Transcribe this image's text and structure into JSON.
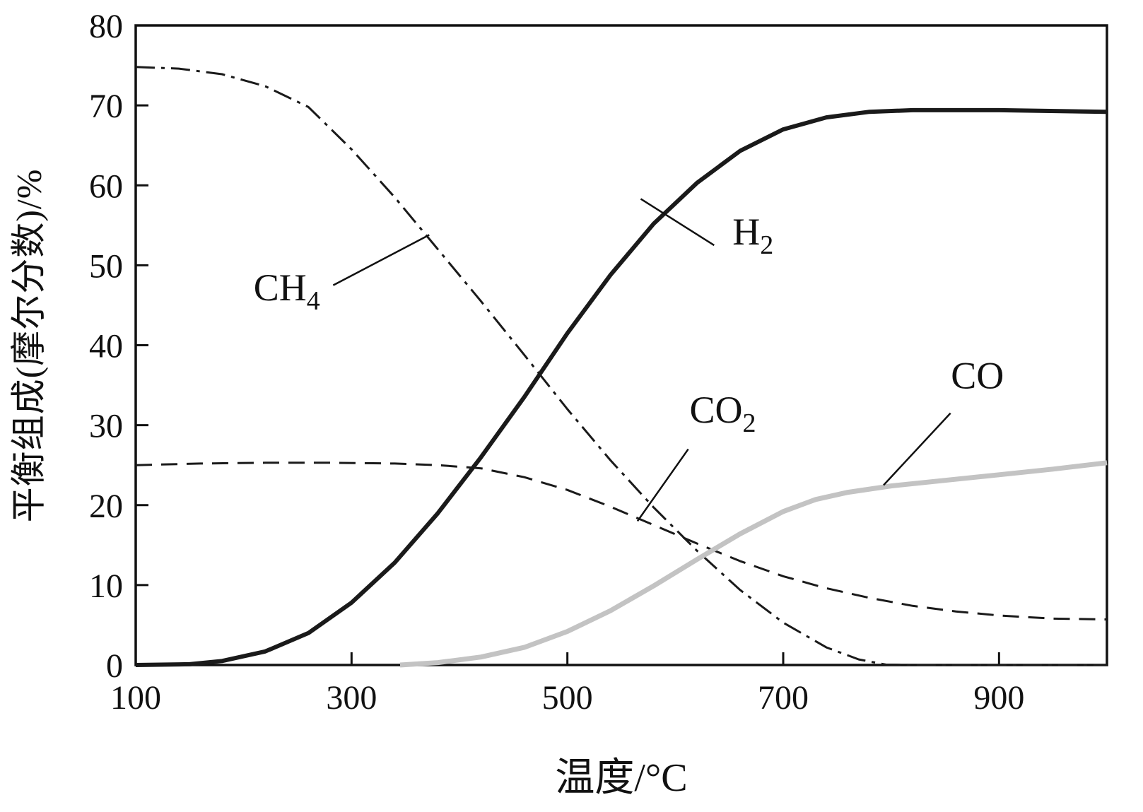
{
  "chart_data": {
    "type": "line",
    "title": "",
    "xlabel": "温度/°C",
    "ylabel": "平衡组成(摩尔分数)/%",
    "xlim": [
      100,
      1000
    ],
    "ylim": [
      0,
      80
    ],
    "x_ticks": [
      100,
      300,
      500,
      700,
      900
    ],
    "y_ticks": [
      0,
      10,
      20,
      30,
      40,
      50,
      60,
      70,
      80
    ],
    "grid": false,
    "legend_position": "inline-annotations",
    "colors": {
      "axis": "#111111",
      "dark_curve": "#1a1a1a",
      "gray_curve": "#c3c3c3"
    },
    "series": [
      {
        "name": "CH4",
        "label_main": "CH",
        "label_sub": "4",
        "style": "dashdot",
        "color": "#1a1a1a",
        "width": 3,
        "points": [
          [
            100,
            74.8
          ],
          [
            140,
            74.6
          ],
          [
            180,
            73.9
          ],
          [
            220,
            72.4
          ],
          [
            260,
            69.8
          ],
          [
            300,
            64.5
          ],
          [
            340,
            58.5
          ],
          [
            380,
            52
          ],
          [
            420,
            45.5
          ],
          [
            460,
            38.8
          ],
          [
            500,
            32
          ],
          [
            540,
            25.6
          ],
          [
            580,
            19.7
          ],
          [
            620,
            14.3
          ],
          [
            660,
            9.4
          ],
          [
            700,
            5.3
          ],
          [
            740,
            2.2
          ],
          [
            770,
            0.7
          ],
          [
            795,
            0.05
          ],
          [
            820,
            0
          ],
          [
            1000,
            0
          ]
        ]
      },
      {
        "name": "H2",
        "label_main": "H",
        "label_sub": "2",
        "style": "solid",
        "color": "#1a1a1a",
        "width": 6,
        "points": [
          [
            100,
            0
          ],
          [
            150,
            0.1
          ],
          [
            180,
            0.5
          ],
          [
            220,
            1.7
          ],
          [
            260,
            4
          ],
          [
            300,
            7.8
          ],
          [
            340,
            12.8
          ],
          [
            380,
            19
          ],
          [
            420,
            26
          ],
          [
            460,
            33.5
          ],
          [
            500,
            41.5
          ],
          [
            540,
            48.8
          ],
          [
            580,
            55.2
          ],
          [
            620,
            60.3
          ],
          [
            660,
            64.3
          ],
          [
            700,
            67
          ],
          [
            740,
            68.5
          ],
          [
            780,
            69.2
          ],
          [
            820,
            69.4
          ],
          [
            900,
            69.4
          ],
          [
            1000,
            69.2
          ]
        ]
      },
      {
        "name": "CO2",
        "label_main": "CO",
        "label_sub": "2",
        "style": "dashed",
        "color": "#1a1a1a",
        "width": 3,
        "points": [
          [
            100,
            25
          ],
          [
            160,
            25.2
          ],
          [
            220,
            25.3
          ],
          [
            280,
            25.3
          ],
          [
            340,
            25.2
          ],
          [
            380,
            25
          ],
          [
            420,
            24.6
          ],
          [
            460,
            23.5
          ],
          [
            500,
            21.9
          ],
          [
            540,
            19.8
          ],
          [
            580,
            17.5
          ],
          [
            620,
            15.2
          ],
          [
            660,
            13
          ],
          [
            700,
            11.1
          ],
          [
            740,
            9.6
          ],
          [
            780,
            8.4
          ],
          [
            820,
            7.4
          ],
          [
            860,
            6.7
          ],
          [
            900,
            6.2
          ],
          [
            950,
            5.8
          ],
          [
            1000,
            5.7
          ]
        ]
      },
      {
        "name": "CO",
        "label_main": "CO",
        "label_sub": "",
        "style": "solid",
        "color": "#c3c3c3",
        "width": 7,
        "points": [
          [
            345,
            0
          ],
          [
            380,
            0.3
          ],
          [
            420,
            1
          ],
          [
            460,
            2.2
          ],
          [
            500,
            4.2
          ],
          [
            540,
            6.8
          ],
          [
            580,
            9.9
          ],
          [
            620,
            13.2
          ],
          [
            660,
            16.4
          ],
          [
            700,
            19.2
          ],
          [
            730,
            20.7
          ],
          [
            760,
            21.6
          ],
          [
            800,
            22.4
          ],
          [
            850,
            23.1
          ],
          [
            900,
            23.8
          ],
          [
            950,
            24.5
          ],
          [
            1000,
            25.3
          ]
        ]
      }
    ],
    "annotations": [
      {
        "series": "CH4",
        "main": "CH",
        "sub": "4",
        "text_x": 240,
        "text_y": 45.6,
        "line": [
          283,
          47.5,
          372,
          53.8
        ]
      },
      {
        "series": "H2",
        "main": "H",
        "sub": "2",
        "text_x": 672,
        "text_y": 52.6,
        "line": [
          636,
          52.5,
          568,
          58.3
        ]
      },
      {
        "series": "CO2",
        "main": "CO",
        "sub": "2",
        "text_x": 644,
        "text_y": 30.3,
        "line": [
          612,
          27,
          565,
          18
        ]
      },
      {
        "series": "CO",
        "main": "CO",
        "sub": "",
        "text_x": 880,
        "text_y": 34.6,
        "line": [
          855,
          31.5,
          793,
          22.5
        ]
      }
    ]
  }
}
